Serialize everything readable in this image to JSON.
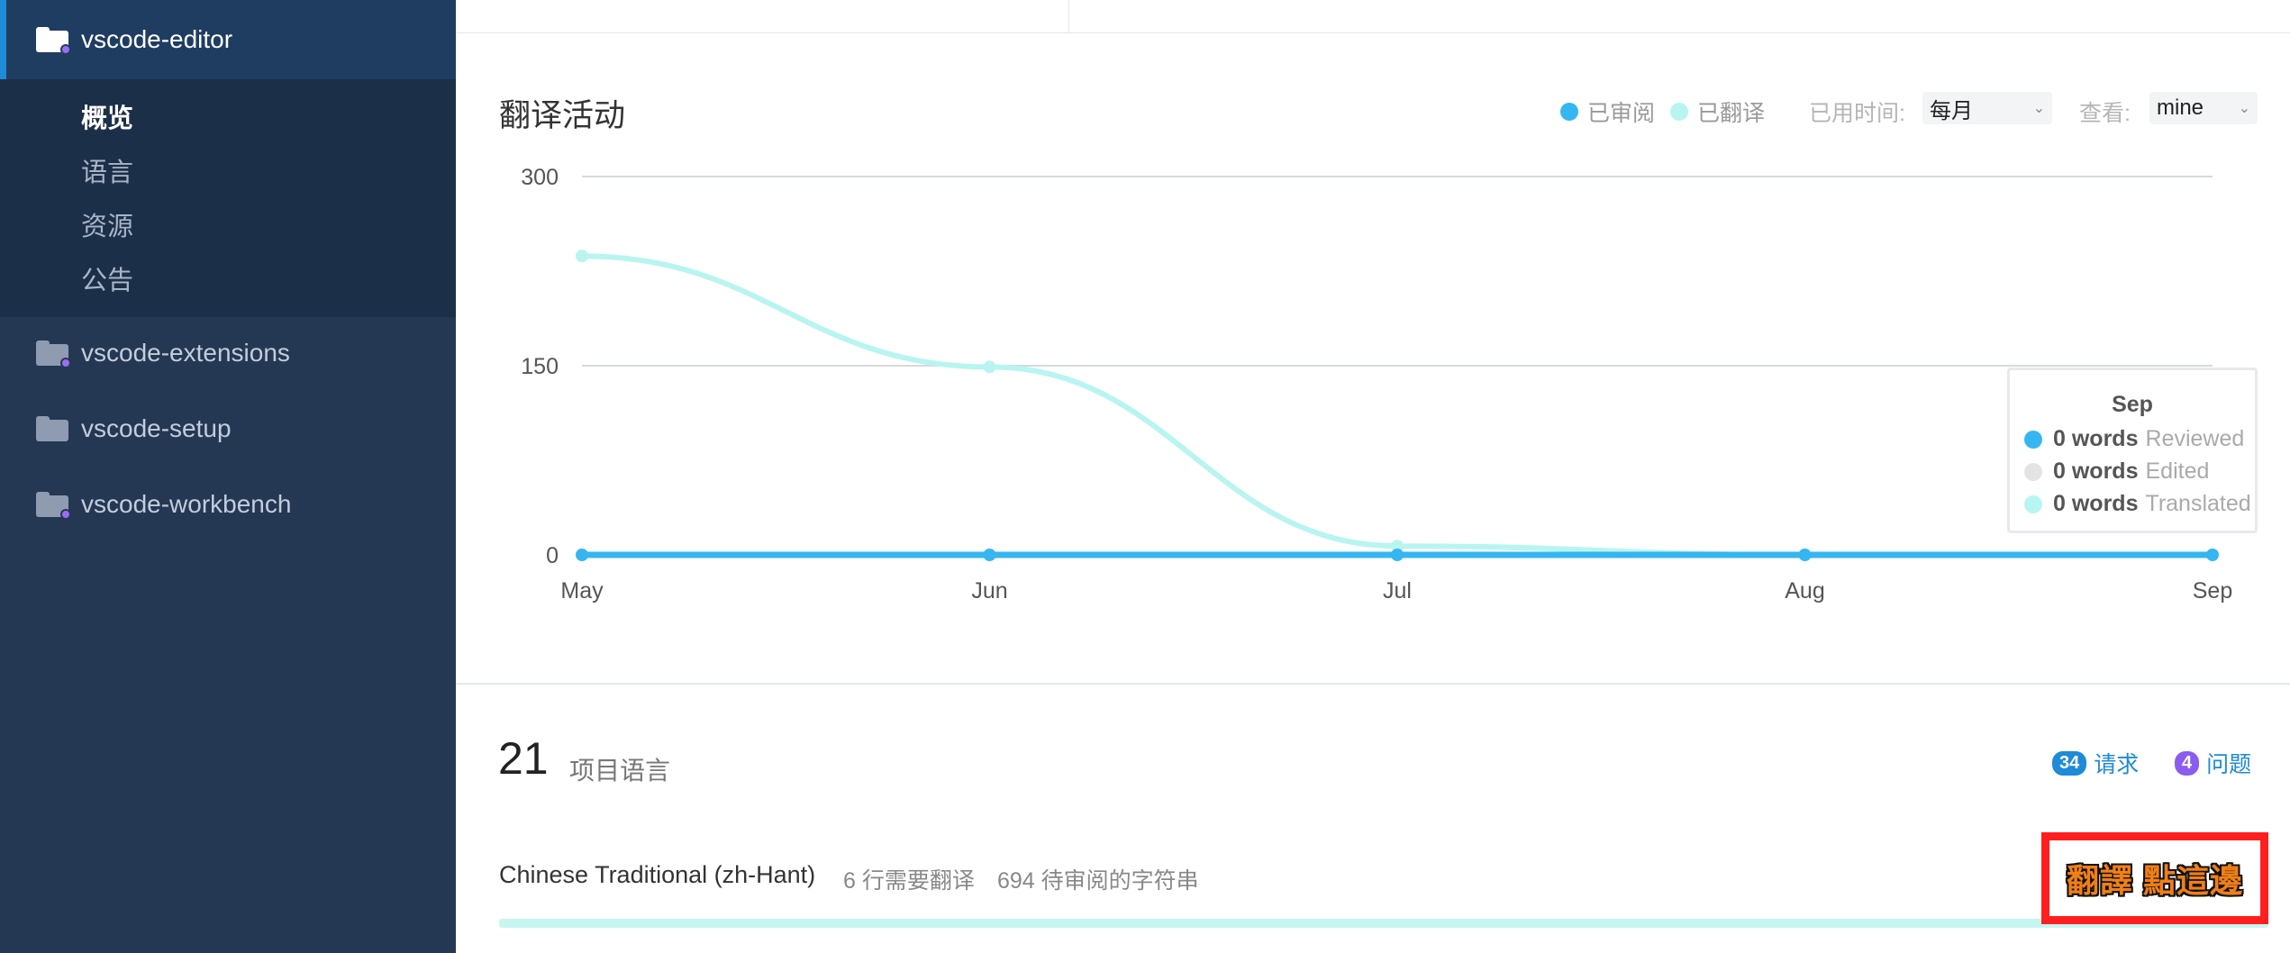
{
  "sidebar": {
    "projects": [
      {
        "name": "vscode-editor",
        "active": true
      },
      {
        "name": "vscode-extensions",
        "active": false
      },
      {
        "name": "vscode-setup",
        "active": false
      },
      {
        "name": "vscode-workbench",
        "active": false
      }
    ],
    "subnav": [
      "概览",
      "语言",
      "资源",
      "公告"
    ]
  },
  "activity": {
    "title": "翻译活动",
    "legend": {
      "reviewed": "已审阅",
      "translated": "已翻译"
    },
    "time_label": "已用时间:",
    "time_value": "每月",
    "view_label": "查看:",
    "view_value": "mine"
  },
  "colors": {
    "reviewed": "#35b6f0",
    "translated": "#b8f5f0",
    "edited": "#e4e4e4",
    "accent": "#1f8ad6"
  },
  "chart_data": {
    "type": "line",
    "x": [
      "May",
      "Jun",
      "Jul",
      "Aug",
      "Sep"
    ],
    "ylim": [
      0,
      300
    ],
    "yticks": [
      0,
      150,
      300
    ],
    "series": [
      {
        "name": "已审阅",
        "values": [
          0,
          0,
          0,
          0,
          0
        ]
      },
      {
        "name": "已翻译",
        "values": [
          237,
          149,
          7,
          0,
          0
        ]
      }
    ],
    "grid": true
  },
  "tooltip": {
    "title": "Sep",
    "rows": [
      {
        "value": "0 words",
        "label": "Reviewed"
      },
      {
        "value": "0 words",
        "label": "Edited"
      },
      {
        "value": "0 words",
        "label": "Translated"
      }
    ]
  },
  "languages": {
    "count": "21",
    "label": "项目语言",
    "requests_count": "34",
    "requests_label": "请求",
    "issues_count": "4",
    "issues_label": "问题",
    "first": {
      "name": "Chinese Traditional (zh-Hant)",
      "needs_translation": "6 行需要翻译",
      "to_review": "694 待审阅的字符串"
    }
  },
  "callout": {
    "text": "翻譯 點這邊"
  }
}
